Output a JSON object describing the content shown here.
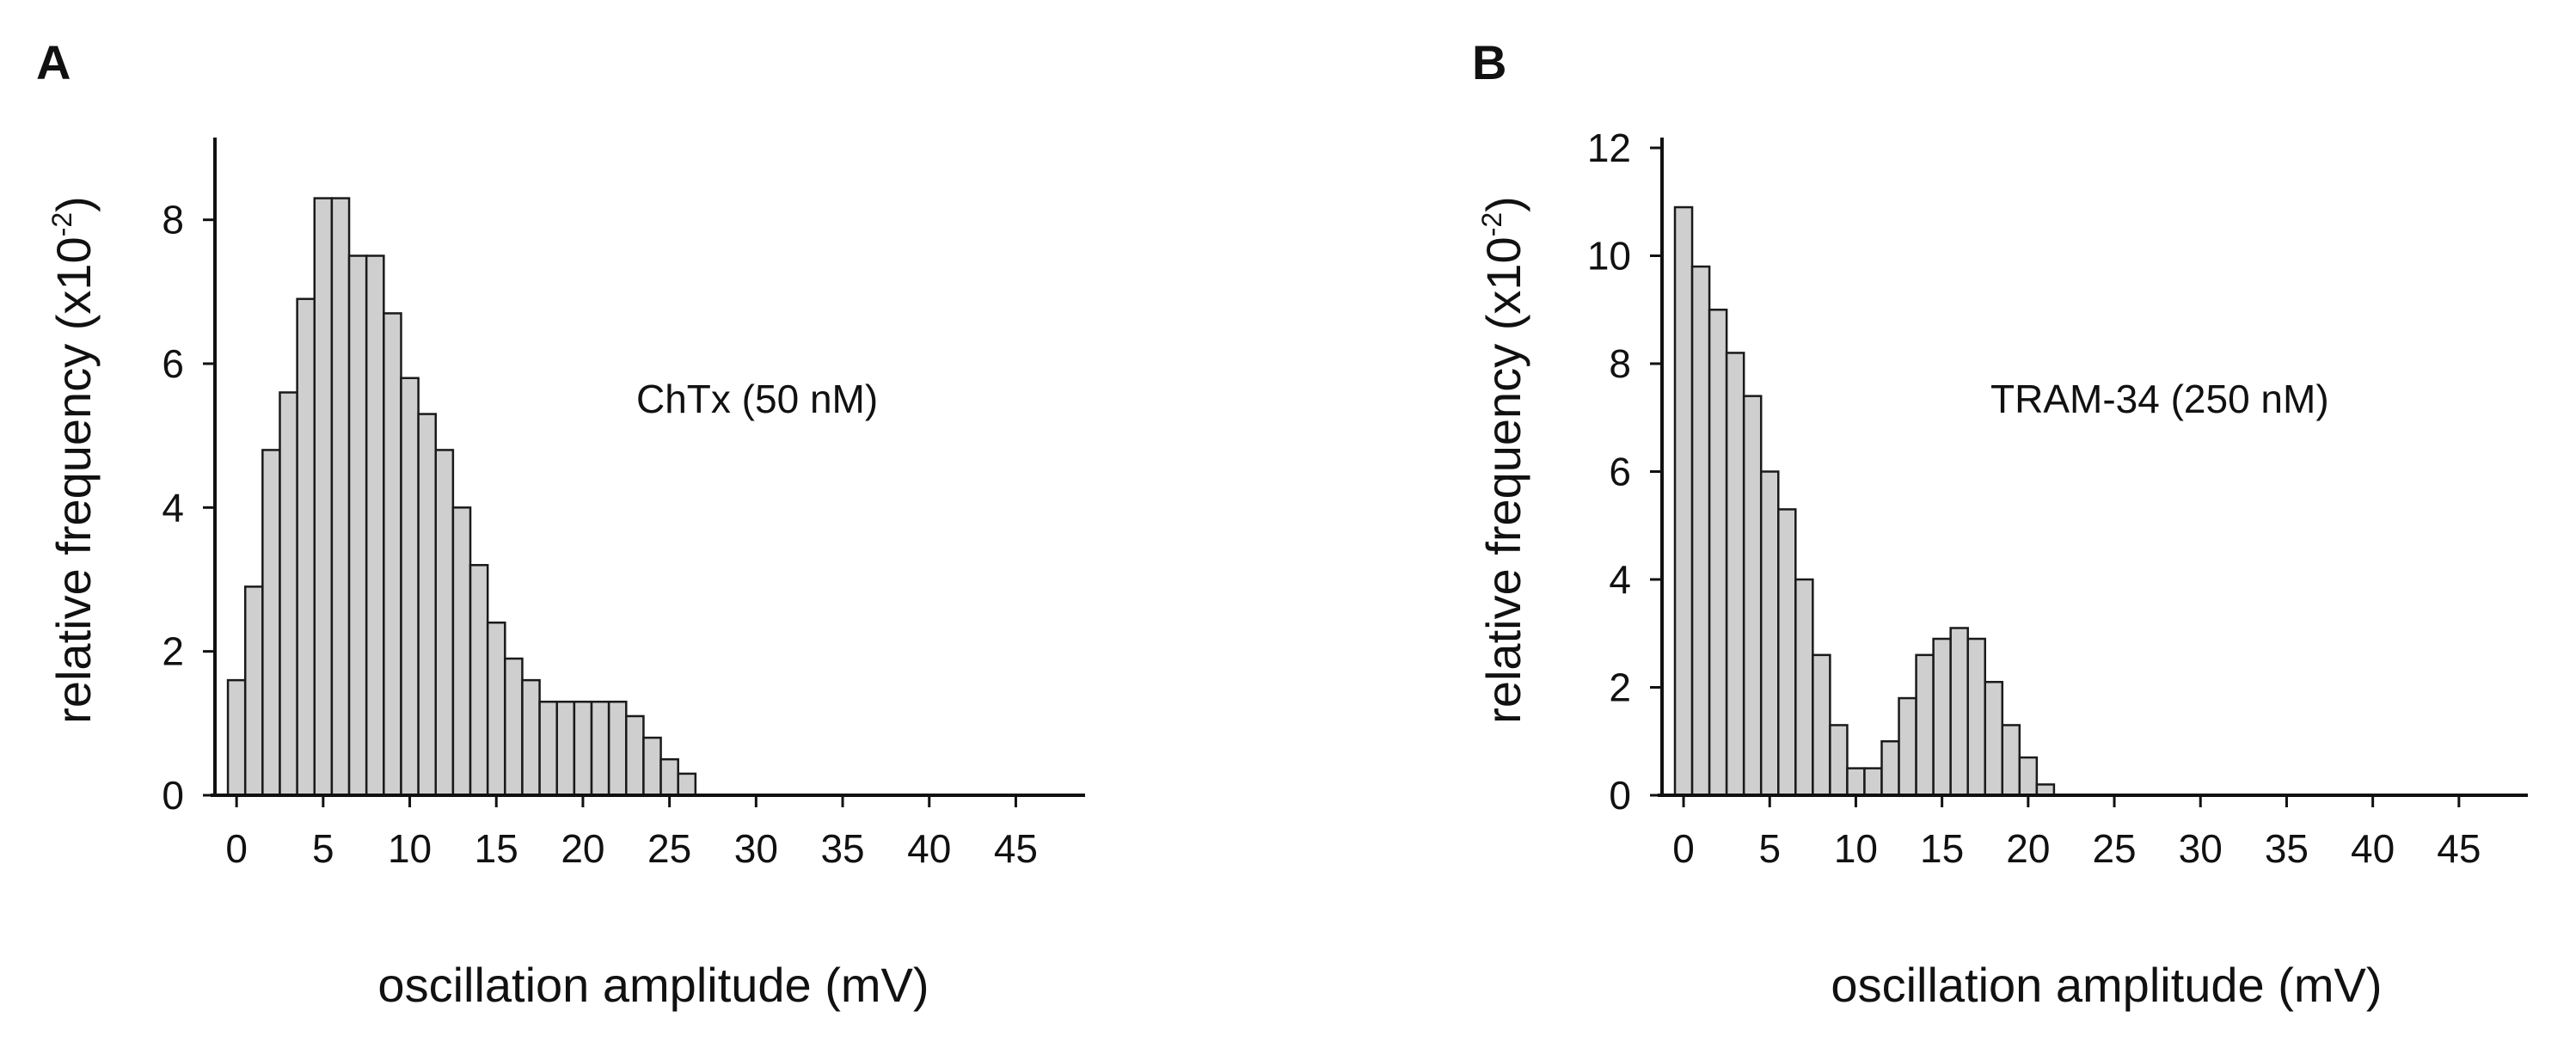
{
  "chart_data": [
    {
      "panel": "A",
      "type": "bar",
      "title": "",
      "annotation": "ChTx (50 nM)",
      "xlabel": "oscillation amplitude (mV)",
      "ylabel": "relative frequency (x10",
      "ylabel_exponent": "-2",
      "ylabel_close": ")",
      "xlim": [
        -1,
        49
      ],
      "ylim": [
        0,
        9
      ],
      "x_ticks": [
        0,
        5,
        10,
        15,
        20,
        25,
        30,
        35,
        40,
        45
      ],
      "y_ticks": [
        0,
        2,
        4,
        6,
        8
      ],
      "bin_width": 1,
      "x": [
        0,
        1,
        2,
        3,
        4,
        5,
        6,
        7,
        8,
        9,
        10,
        11,
        12,
        13,
        14,
        15,
        16,
        17,
        18,
        19,
        20,
        21,
        22,
        23,
        24,
        25,
        26
      ],
      "values": [
        1.6,
        2.9,
        4.8,
        5.6,
        6.9,
        8.3,
        8.3,
        7.5,
        7.5,
        6.7,
        5.8,
        5.3,
        4.8,
        4.0,
        3.2,
        2.4,
        1.9,
        1.6,
        1.3,
        1.3,
        1.3,
        1.3,
        1.3,
        1.1,
        0.8,
        0.5,
        0.3
      ]
    },
    {
      "panel": "B",
      "type": "bar",
      "title": "",
      "annotation": "TRAM-34 (250 nM)",
      "xlabel": "oscillation amplitude (mV)",
      "ylabel": "relative frequency (x10",
      "ylabel_exponent": "-2",
      "ylabel_close": ")",
      "xlim": [
        -1,
        49
      ],
      "ylim": [
        0,
        12
      ],
      "x_ticks": [
        0,
        5,
        10,
        15,
        20,
        25,
        30,
        35,
        40,
        45
      ],
      "y_ticks": [
        0,
        2,
        4,
        6,
        8,
        10,
        12
      ],
      "bin_width": 1,
      "x": [
        0,
        1,
        2,
        3,
        4,
        5,
        6,
        7,
        8,
        9,
        10,
        11,
        12,
        13,
        14,
        15,
        16,
        17,
        18,
        19,
        20,
        21
      ],
      "values": [
        10.9,
        9.8,
        9.0,
        8.2,
        7.4,
        6.0,
        5.3,
        4.0,
        2.6,
        1.3,
        0.5,
        0.5,
        1.0,
        1.8,
        2.6,
        2.9,
        3.1,
        2.9,
        2.1,
        1.3,
        0.7,
        0.2
      ]
    }
  ],
  "colors": {
    "bar_fill": "#cfcfcf",
    "bar_stroke": "#1a1a1a",
    "axis": "#111111",
    "background": "#ffffff"
  }
}
